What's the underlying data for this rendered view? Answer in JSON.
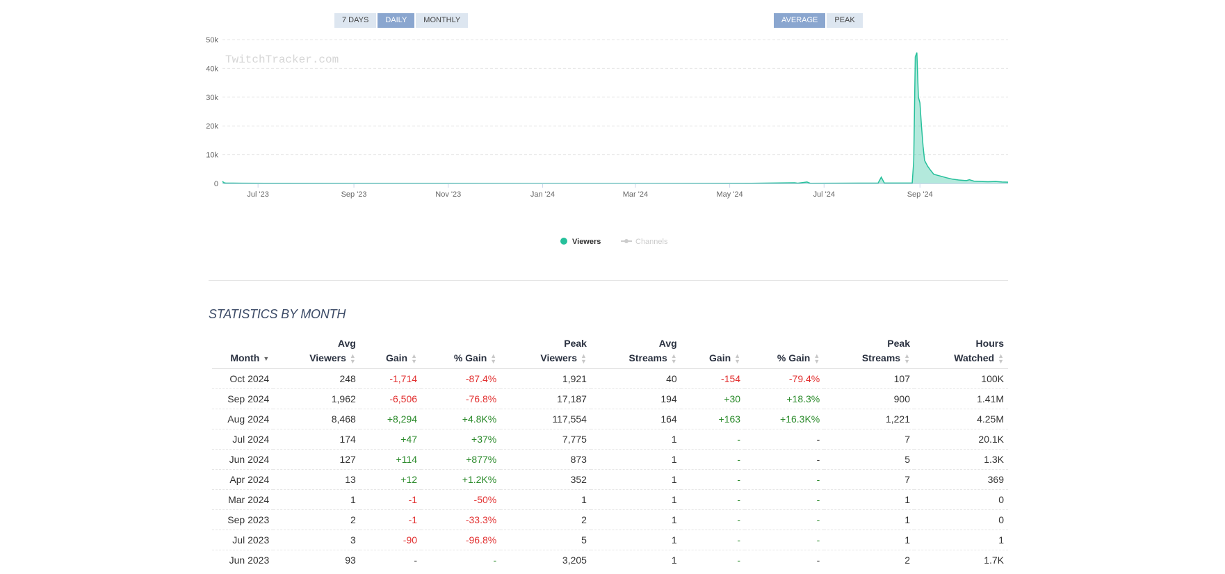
{
  "toolbar_left": {
    "buttons": [
      {
        "label": "7 DAYS",
        "active": false
      },
      {
        "label": "DAILY",
        "active": true
      },
      {
        "label": "MONTHLY",
        "active": false
      }
    ]
  },
  "toolbar_right": {
    "buttons": [
      {
        "label": "AVERAGE",
        "active": true
      },
      {
        "label": "PEAK",
        "active": false
      }
    ]
  },
  "chart_data": {
    "type": "area",
    "watermark": "TwitchTracker.com",
    "y_ticks": [
      "0",
      "10k",
      "20k",
      "30k",
      "40k",
      "50k"
    ],
    "ylim": [
      0,
      50000
    ],
    "x_ticks": [
      "Jul '23",
      "Sep '23",
      "Nov '23",
      "Jan '24",
      "Mar '24",
      "May '24",
      "Jul '24",
      "Sep '24"
    ],
    "x_tick_dates": [
      "2023-07-01",
      "2023-09-01",
      "2023-11-01",
      "2024-01-01",
      "2024-03-01",
      "2024-05-01",
      "2024-07-01",
      "2024-09-01"
    ],
    "xlim": [
      "2023-06-08",
      "2024-10-28"
    ],
    "grid": true,
    "legend_position": "bottom-center",
    "colors": {
      "viewers": "#26c09b",
      "channels": "#cccccc"
    },
    "series": [
      {
        "name": "Viewers",
        "visible": true,
        "points": [
          [
            "2023-06-08",
            700
          ],
          [
            "2023-06-09",
            250
          ],
          [
            "2023-06-10",
            150
          ],
          [
            "2023-06-20",
            100
          ],
          [
            "2023-07-15",
            50
          ],
          [
            "2023-09-15",
            20
          ],
          [
            "2024-03-10",
            10
          ],
          [
            "2024-05-15",
            50
          ],
          [
            "2024-06-12",
            250
          ],
          [
            "2024-06-14",
            100
          ],
          [
            "2024-06-20",
            500
          ],
          [
            "2024-06-22",
            80
          ],
          [
            "2024-07-10",
            100
          ],
          [
            "2024-08-05",
            150
          ],
          [
            "2024-08-07",
            2200
          ],
          [
            "2024-08-09",
            150
          ],
          [
            "2024-08-27",
            200
          ],
          [
            "2024-08-28",
            8000
          ],
          [
            "2024-08-29",
            44000
          ],
          [
            "2024-08-30",
            45500
          ],
          [
            "2024-08-31",
            30000
          ],
          [
            "2024-09-01",
            28000
          ],
          [
            "2024-09-02",
            20000
          ],
          [
            "2024-09-03",
            13000
          ],
          [
            "2024-09-04",
            8000
          ],
          [
            "2024-09-06",
            6000
          ],
          [
            "2024-09-08",
            4500
          ],
          [
            "2024-09-10",
            3200
          ],
          [
            "2024-09-14",
            2600
          ],
          [
            "2024-09-18",
            2000
          ],
          [
            "2024-09-22",
            1500
          ],
          [
            "2024-09-26",
            1200
          ],
          [
            "2024-10-01",
            1000
          ],
          [
            "2024-10-03",
            1300
          ],
          [
            "2024-10-06",
            800
          ],
          [
            "2024-10-10",
            700
          ],
          [
            "2024-10-15",
            600
          ],
          [
            "2024-10-20",
            700
          ],
          [
            "2024-10-24",
            500
          ],
          [
            "2024-10-28",
            450
          ]
        ]
      },
      {
        "name": "Channels",
        "visible": false,
        "points": []
      }
    ]
  },
  "stats": {
    "title": "STATISTICS BY MONTH",
    "columns": [
      {
        "l1": "",
        "l2": "Month",
        "sort": "desc"
      },
      {
        "l1": "Avg",
        "l2": "Viewers",
        "sort": "none"
      },
      {
        "l1": "",
        "l2": "Gain",
        "sort": "none"
      },
      {
        "l1": "",
        "l2": "% Gain",
        "sort": "none"
      },
      {
        "l1": "Peak",
        "l2": "Viewers",
        "sort": "none"
      },
      {
        "l1": "Avg",
        "l2": "Streams",
        "sort": "none"
      },
      {
        "l1": "",
        "l2": "Gain",
        "sort": "none"
      },
      {
        "l1": "",
        "l2": "% Gain",
        "sort": "none"
      },
      {
        "l1": "Peak",
        "l2": "Streams",
        "sort": "none"
      },
      {
        "l1": "Hours",
        "l2": "Watched",
        "sort": "none"
      }
    ],
    "rows": [
      [
        "Oct 2024",
        "248",
        "-1,714",
        "-87.4%",
        "1,921",
        "40",
        "-154",
        "-79.4%",
        "107",
        "100K"
      ],
      [
        "Sep 2024",
        "1,962",
        "-6,506",
        "-76.8%",
        "17,187",
        "194",
        "+30",
        "+18.3%",
        "900",
        "1.41M"
      ],
      [
        "Aug 2024",
        "8,468",
        "+8,294",
        "+4.8K%",
        "117,554",
        "164",
        "+163",
        "+16.3K%",
        "1,221",
        "4.25M"
      ],
      [
        "Jul 2024",
        "174",
        "+47",
        "+37%",
        "7,775",
        "1",
        "-",
        "-",
        "7",
        "20.1K"
      ],
      [
        "Jun 2024",
        "127",
        "+114",
        "+877%",
        "873",
        "1",
        "-",
        "-",
        "5",
        "1.3K"
      ],
      [
        "Apr 2024",
        "13",
        "+12",
        "+1.2K%",
        "352",
        "1",
        "-",
        "-",
        "7",
        "369"
      ],
      [
        "Mar 2024",
        "1",
        "-1",
        "-50%",
        "1",
        "1",
        "-",
        "-",
        "1",
        "0"
      ],
      [
        "Sep 2023",
        "2",
        "-1",
        "-33.3%",
        "2",
        "1",
        "-",
        "-",
        "1",
        "0"
      ],
      [
        "Jul 2023",
        "3",
        "-90",
        "-96.8%",
        "5",
        "1",
        "-",
        "-",
        "1",
        "1"
      ],
      [
        "Jun 2023",
        "93",
        "-",
        "-",
        "3,205",
        "1",
        "-",
        "-",
        "2",
        "1.7K"
      ]
    ],
    "row_styles": [
      [
        "neu",
        "neu",
        "neg",
        "neg",
        "neu",
        "neu",
        "neg",
        "neg",
        "neu",
        "neu"
      ],
      [
        "neu",
        "neu",
        "neg",
        "neg",
        "neu",
        "neu",
        "pos",
        "pos",
        "neu",
        "neu"
      ],
      [
        "neu",
        "neu",
        "pos",
        "pos",
        "neu",
        "neu",
        "pos",
        "pos",
        "neu",
        "neu"
      ],
      [
        "neu",
        "neu",
        "pos",
        "pos",
        "neu",
        "neu",
        "zero",
        "neu",
        "neu",
        "neu"
      ],
      [
        "neu",
        "neu",
        "pos",
        "pos",
        "neu",
        "neu",
        "zero",
        "neu",
        "neu",
        "neu"
      ],
      [
        "neu",
        "neu",
        "pos",
        "pos",
        "neu",
        "neu",
        "zero",
        "zero",
        "neu",
        "neu"
      ],
      [
        "neu",
        "neu",
        "neg",
        "neg",
        "neu",
        "neu",
        "zero",
        "zero",
        "neu",
        "neu"
      ],
      [
        "neu",
        "neu",
        "neg",
        "neg",
        "neu",
        "neu",
        "zero",
        "zero",
        "neu",
        "neu"
      ],
      [
        "neu",
        "neu",
        "neg",
        "neg",
        "neu",
        "neu",
        "zero",
        "zero",
        "neu",
        "neu"
      ],
      [
        "neu",
        "neu",
        "neu",
        "zero",
        "neu",
        "neu",
        "zero",
        "neu",
        "neu",
        "neu"
      ]
    ]
  }
}
